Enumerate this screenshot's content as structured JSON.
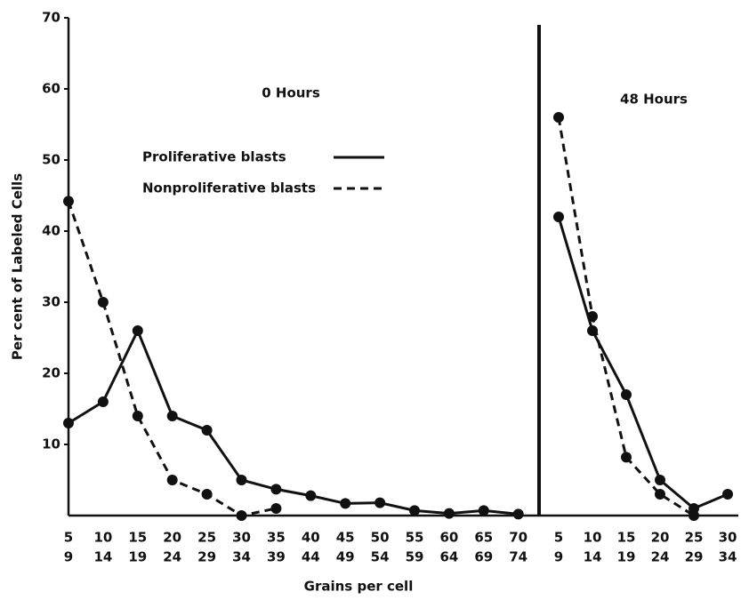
{
  "chart_data": [
    {
      "type": "line",
      "title": "0 Hours",
      "ylabel": "Per cent of Labeled Cells",
      "xlabel": "Grains per cell",
      "categories": [
        [
          "5",
          "9"
        ],
        [
          "10",
          "14"
        ],
        [
          "15",
          "19"
        ],
        [
          "20",
          "24"
        ],
        [
          "25",
          "29"
        ],
        [
          "30",
          "34"
        ],
        [
          "35",
          "39"
        ],
        [
          "40",
          "44"
        ],
        [
          "45",
          "49"
        ],
        [
          "50",
          "54"
        ],
        [
          "55",
          "59"
        ],
        [
          "60",
          "64"
        ],
        [
          "65",
          "69"
        ],
        [
          "70",
          "74"
        ]
      ],
      "series": [
        {
          "name": "Proliferative blasts",
          "color": "#111111",
          "linestyle": "solid",
          "values": [
            13,
            16,
            26,
            14,
            12,
            5,
            3.7,
            2.8,
            1.7,
            1.8,
            0.7,
            0.3,
            0.7,
            0.2
          ]
        },
        {
          "name": "Nonproliferative blasts",
          "color": "#111111",
          "linestyle": "dashed",
          "values": [
            44.2,
            30,
            14,
            5,
            3,
            0,
            1,
            null,
            null,
            null,
            null,
            null,
            null,
            null
          ]
        }
      ],
      "ylim": [
        0,
        70
      ],
      "yticks": [
        10,
        20,
        30,
        40,
        50,
        60,
        70
      ],
      "legend": true
    },
    {
      "type": "line",
      "title": "48 Hours",
      "categories": [
        [
          "5",
          "9"
        ],
        [
          "10",
          "14"
        ],
        [
          "15",
          "19"
        ],
        [
          "20",
          "24"
        ],
        [
          "25",
          "29"
        ],
        [
          "30",
          "34"
        ]
      ],
      "series": [
        {
          "name": "Proliferative blasts",
          "color": "#111111",
          "linestyle": "solid",
          "values": [
            42,
            26,
            17,
            5,
            1,
            3
          ]
        },
        {
          "name": "Nonproliferative blasts",
          "color": "#111111",
          "linestyle": "dashed",
          "values": [
            56,
            28,
            8.2,
            3,
            0,
            null
          ]
        }
      ],
      "ylim": [
        0,
        70
      ],
      "legend": false
    }
  ]
}
